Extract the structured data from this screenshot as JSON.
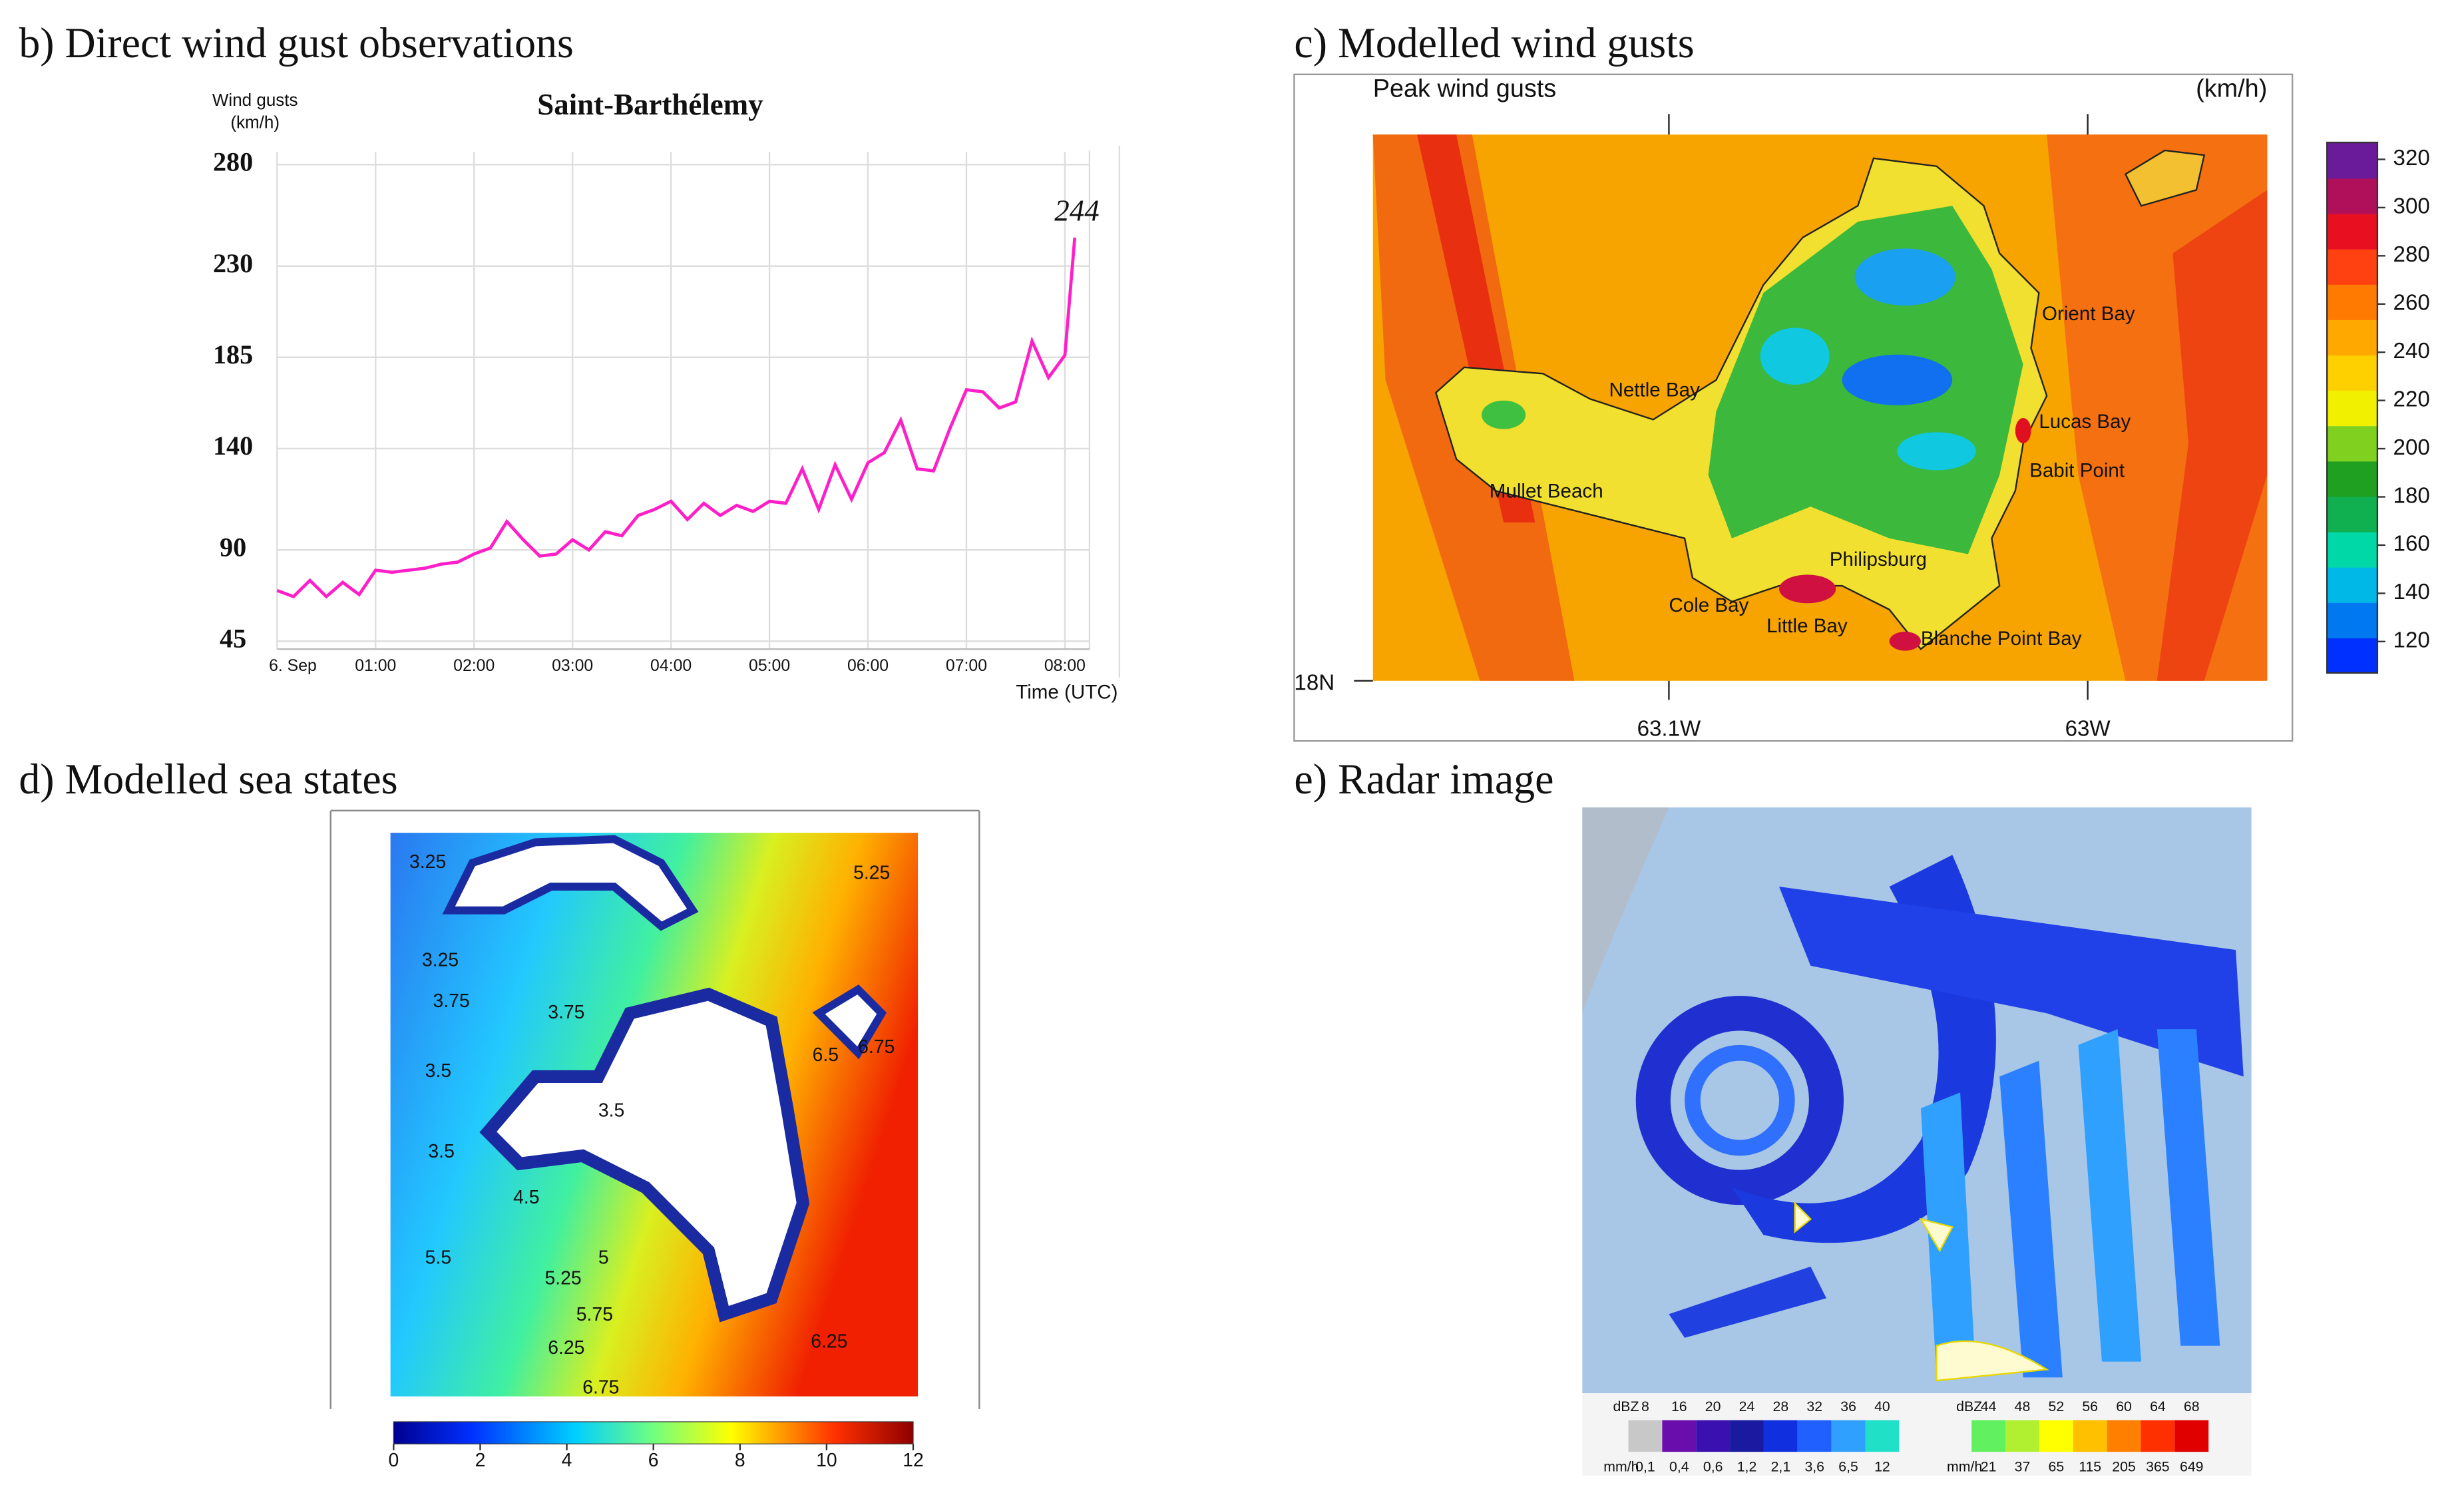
{
  "panels": {
    "b": "b) Direct wind gust observations",
    "c": "c) Modelled wind gusts",
    "d": "d) Modelled sea states",
    "e": "e) Radar image"
  },
  "chart_data": {
    "type": "line",
    "title": "Saint-Barthélemy",
    "ylabel": [
      "Wind gusts",
      "(km/h)"
    ],
    "xlabel": "Time (UTC)",
    "x": [
      0,
      10,
      20,
      30,
      40,
      50,
      60,
      70,
      80,
      90,
      100,
      110,
      120,
      130,
      140,
      150,
      160,
      170,
      180,
      190,
      200,
      210,
      220,
      230,
      240,
      250,
      260,
      270,
      280,
      290,
      300,
      310,
      320,
      330,
      340,
      350,
      360,
      370,
      380,
      390,
      400,
      410,
      420,
      430,
      440,
      450,
      460,
      470,
      480,
      486
    ],
    "series": [
      {
        "color": "#ff1fc8",
        "values": [
          70,
          67,
          75,
          67,
          74,
          68,
          80,
          79,
          80,
          81,
          83,
          84,
          88,
          91,
          104,
          95,
          87,
          88,
          95,
          90,
          99,
          97,
          107,
          110,
          114,
          105,
          113,
          107,
          112,
          109,
          114,
          113,
          130,
          110,
          132,
          115,
          133,
          138,
          154,
          130,
          129,
          150,
          169,
          168,
          160,
          163,
          193,
          175,
          186,
          244
        ]
      }
    ],
    "annotation": "244",
    "xlim": [
      0,
      495
    ],
    "ylim": [
      45,
      280
    ],
    "xticks": [
      {
        "value": 0,
        "label": "6. Sep"
      },
      {
        "value": 60,
        "label": "01:00"
      },
      {
        "value": 120,
        "label": "02:00"
      },
      {
        "value": 180,
        "label": "03:00"
      },
      {
        "value": 240,
        "label": "04:00"
      },
      {
        "value": 300,
        "label": "05:00"
      },
      {
        "value": 360,
        "label": "06:00"
      },
      {
        "value": 420,
        "label": "07:00"
      },
      {
        "value": 480,
        "label": "08:00"
      }
    ],
    "yticks": [
      45,
      90,
      140,
      185,
      230,
      280
    ],
    "grid": true
  },
  "wind_map": {
    "title": "Peak wind gusts",
    "unit": "(km/h)",
    "places": [
      "Nettle Bay",
      "Mullet Beach",
      "Philipsburg",
      "Cole Bay",
      "Little Bay",
      "Blanche Point Bay",
      "Orient Bay",
      "Lucas Bay",
      "Babit Point"
    ],
    "lat_label": "18N",
    "lon_labels": [
      "63.1W",
      "63W"
    ],
    "colorbar": {
      "ticks": [
        120,
        140,
        160,
        180,
        200,
        220,
        240,
        260,
        280,
        300,
        320
      ],
      "clim": [
        107,
        327
      ],
      "colors": [
        "#0030ff",
        "#0078f0",
        "#00b8e8",
        "#00d8a8",
        "#10b050",
        "#20a020",
        "#80d020",
        "#f0f000",
        "#ffd000",
        "#ffa800",
        "#ff7a00",
        "#ff4010",
        "#e81020",
        "#b0105a",
        "#6a1b9a"
      ]
    }
  },
  "sea_map": {
    "contour_labels": [
      3.25,
      3.25,
      3.75,
      3.5,
      3.75,
      3.5,
      3.5,
      4.5,
      5.5,
      5.25,
      5.75,
      6.25,
      6.75,
      5.25,
      6.5,
      6.75,
      6.25,
      5
    ],
    "colorbar": {
      "ticks": [
        0,
        2,
        4,
        6,
        8,
        10,
        12
      ],
      "clim": [
        0,
        12
      ]
    }
  },
  "radar": {
    "dbz_label": "dBZ",
    "rate_label": "mm/h",
    "dbz_low": [
      8,
      16,
      20,
      24,
      28,
      32,
      36,
      40
    ],
    "rate_low": [
      "0,1",
      "0,4",
      "0,6",
      "1,2",
      "2,1",
      "3,6",
      "6,5",
      "12"
    ],
    "dbz_high": [
      44,
      48,
      52,
      56,
      60,
      64,
      68
    ],
    "rate_high": [
      "21",
      "37",
      "65",
      "115",
      "205",
      "365",
      "649"
    ],
    "colors_low": [
      "#c8c8c8",
      "#6a0dad",
      "#3a10b0",
      "#1a1aa0",
      "#1030e0",
      "#2060ff",
      "#30a0ff",
      "#20e0c8"
    ],
    "colors_high": [
      "#60f060",
      "#b0f030",
      "#ffff00",
      "#ffc000",
      "#ff8000",
      "#ff3000",
      "#e00000"
    ]
  }
}
